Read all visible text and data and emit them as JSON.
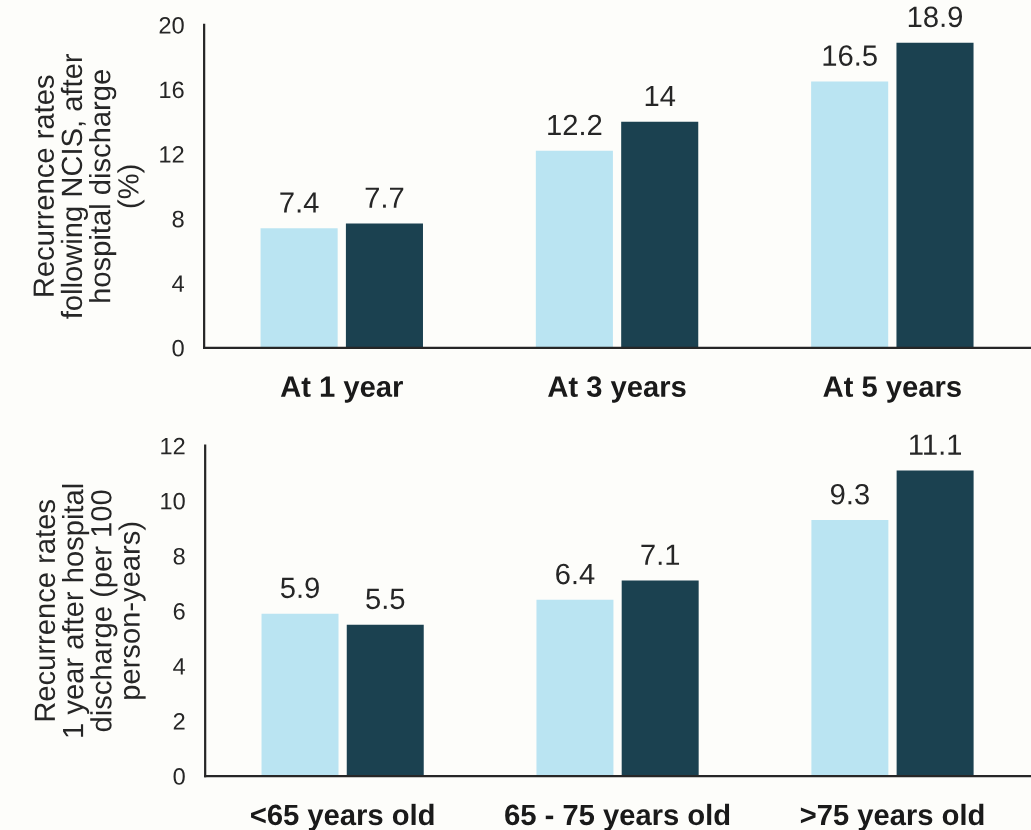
{
  "chart_data": [
    {
      "type": "bar",
      "categories": [
        "At 1 year",
        "At 3 years",
        "At 5 years"
      ],
      "ylabel": "Recurrence rates\nfollowing NCIS, after\nhospital discharge\n(%)",
      "series": [
        {
          "color": "#bae4f2",
          "values": [
            7.4,
            12.2,
            16.5
          ]
        },
        {
          "color": "#1b4150",
          "values": [
            7.7,
            14,
            18.9
          ]
        }
      ],
      "ylim": [
        0,
        20
      ],
      "yticks": [
        0,
        4,
        8,
        12,
        16,
        20
      ],
      "data_labels": true
    },
    {
      "type": "bar",
      "categories": [
        "<65 years old",
        "65 - 75 years old",
        ">75 years old"
      ],
      "ylabel": "Recurrence rates\n1 year after hospital\ndischarge (per 100\nperson-years)",
      "series": [
        {
          "color": "#bae4f2",
          "values": [
            5.9,
            6.4,
            9.3
          ]
        },
        {
          "color": "#1b4150",
          "values": [
            5.5,
            7.1,
            11.1
          ]
        }
      ],
      "ylim": [
        0,
        12
      ],
      "yticks": [
        0,
        2,
        4,
        6,
        8,
        10,
        12
      ],
      "data_labels": true
    }
  ]
}
